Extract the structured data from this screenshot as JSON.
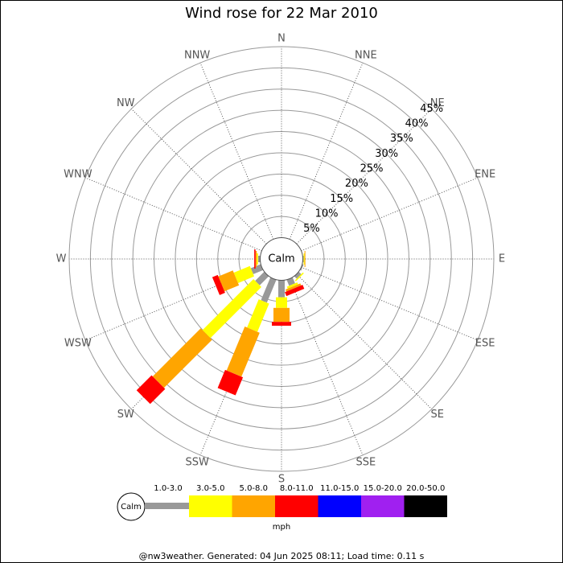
{
  "chart_data": {
    "type": "windrose",
    "title": "Wind rose for 22 Mar 2010",
    "calm_label": "Calm",
    "directions": [
      "N",
      "NNE",
      "NE",
      "ENE",
      "E",
      "ESE",
      "SE",
      "SSE",
      "S",
      "SSW",
      "SW",
      "WSW",
      "W",
      "WNW",
      "NW",
      "NNW"
    ],
    "rlim": [
      0,
      45
    ],
    "rticks": [
      {
        "value": 5,
        "label": "5%"
      },
      {
        "value": 10,
        "label": "10%"
      },
      {
        "value": 15,
        "label": "15%"
      },
      {
        "value": 20,
        "label": "20%"
      },
      {
        "value": 25,
        "label": "25%"
      },
      {
        "value": 30,
        "label": "30%"
      },
      {
        "value": 35,
        "label": "35%"
      },
      {
        "value": 40,
        "label": "40%"
      },
      {
        "value": 45,
        "label": "45%"
      }
    ],
    "legend_unit": "mph",
    "series": [
      {
        "name": "1.0-3.0",
        "color": "#999999",
        "values": [
          0,
          0,
          0,
          0,
          0.2,
          0.3,
          0.8,
          1.5,
          4,
          5.8,
          3,
          2.5,
          0.5,
          0,
          0,
          0
        ]
      },
      {
        "name": "3.0-5.0",
        "color": "#ffff00",
        "values": [
          0,
          0,
          0,
          0,
          0.2,
          0,
          0.3,
          0.5,
          2.5,
          7.2,
          17,
          4.1,
          0.3,
          0,
          0,
          0
        ]
      },
      {
        "name": "5.0-8.0",
        "color": "#ffa500",
        "values": [
          0,
          0,
          0,
          0,
          0.2,
          0,
          0,
          0.5,
          3.3,
          11.2,
          16,
          3.7,
          0.3,
          0,
          0,
          0
        ]
      },
      {
        "name": "8.0-11.0",
        "color": "#ff0000",
        "values": [
          0,
          0,
          0,
          0,
          0,
          0,
          0,
          1,
          0.9,
          4.6,
          5,
          1.4,
          0.3,
          0,
          0,
          0
        ]
      },
      {
        "name": "11.0-15.0",
        "color": "#0000ff",
        "values": [
          0,
          0,
          0,
          0,
          0,
          0,
          0,
          0,
          0,
          0,
          0,
          0,
          0,
          0,
          0,
          0
        ]
      },
      {
        "name": "15.0-20.0",
        "color": "#a020f0",
        "values": [
          0,
          0,
          0,
          0,
          0,
          0,
          0,
          0,
          0,
          0,
          0,
          0,
          0,
          0,
          0,
          0
        ]
      },
      {
        "name": "20.0-50.0",
        "color": "#000000",
        "values": [
          0,
          0,
          0,
          0,
          0,
          0,
          0,
          0,
          0,
          0,
          0,
          0,
          0,
          0,
          0,
          0
        ]
      }
    ],
    "footer": "@nw3weather. Generated: 04 Jun 2025 08:11; Load time: 0.11 s"
  }
}
